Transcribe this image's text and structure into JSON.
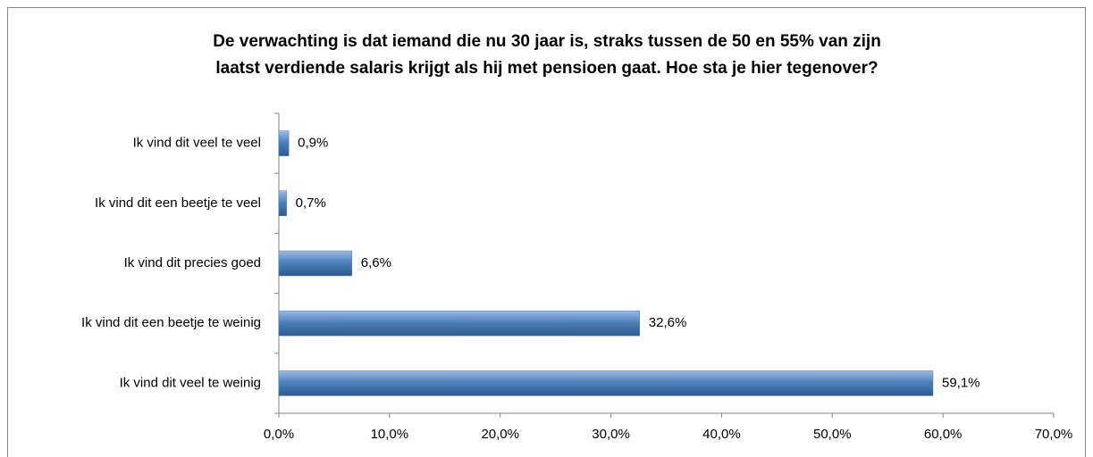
{
  "chart_data": {
    "type": "bar",
    "orientation": "horizontal",
    "title": [
      "De verwachting is dat iemand die nu 30 jaar is, straks tussen de 50 en 55% van zijn",
      "laatst verdiende salaris krijgt als hij met pensioen gaat. Hoe sta je hier tegenover?"
    ],
    "categories": [
      "Ik vind dit veel te veel",
      "Ik vind dit een beetje te veel",
      "Ik vind dit precies goed",
      "Ik vind dit een beetje te weinig",
      "Ik vind dit veel te weinig"
    ],
    "values": [
      0.9,
      0.7,
      6.6,
      32.6,
      59.1
    ],
    "value_labels": [
      "0,9%",
      "0,7%",
      "6,6%",
      "32,6%",
      "59,1%"
    ],
    "color": "#4f81bd",
    "xlim": [
      0,
      70
    ],
    "xticks": [
      {
        "value": 0,
        "label": "0,0%"
      },
      {
        "value": 10,
        "label": "10,0%"
      },
      {
        "value": 20,
        "label": "20,0%"
      },
      {
        "value": 30,
        "label": "30,0%"
      },
      {
        "value": 40,
        "label": "40,0%"
      },
      {
        "value": 50,
        "label": "50,0%"
      },
      {
        "value": 60,
        "label": "60,0%"
      },
      {
        "value": 70,
        "label": "70,0%"
      }
    ],
    "grid": false
  }
}
